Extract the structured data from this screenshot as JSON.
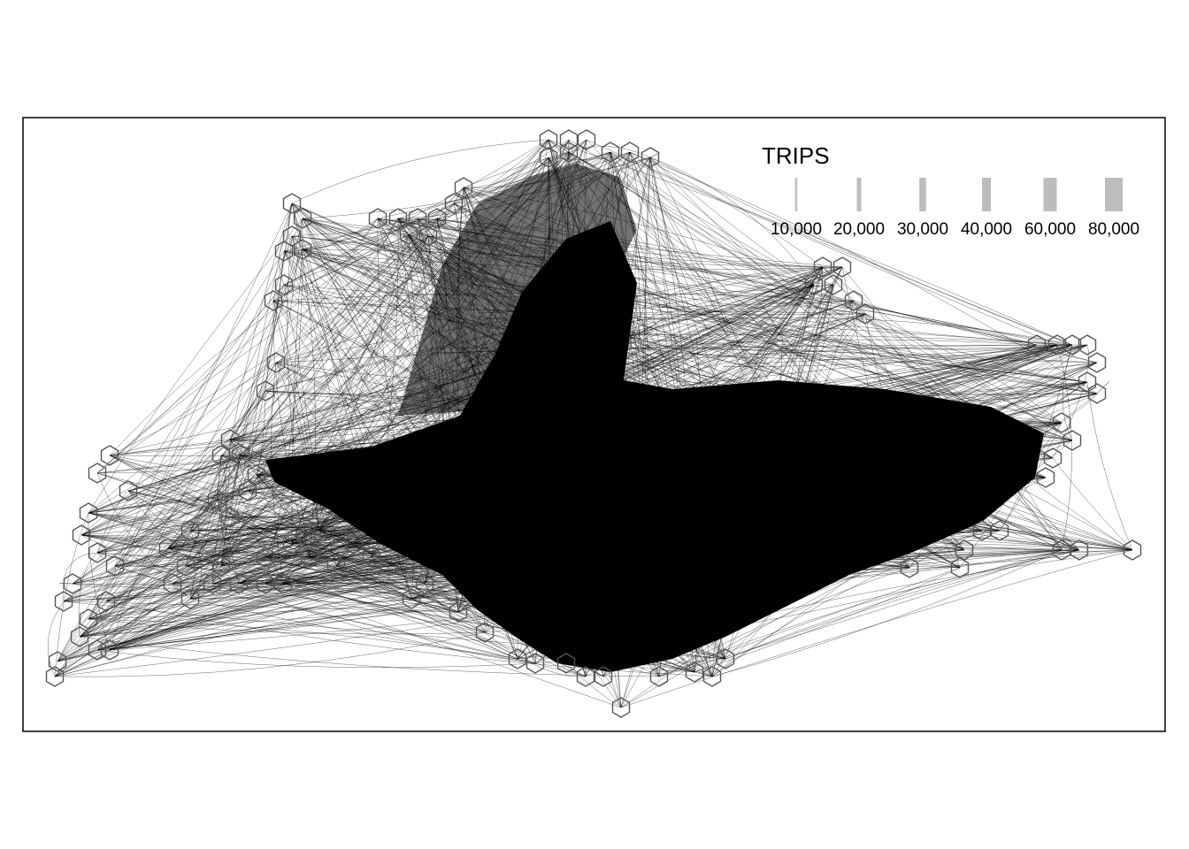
{
  "legend": {
    "title": "TRIPS",
    "items": [
      {
        "label": "10,000",
        "value": 10000,
        "color": "#bdbdbd"
      },
      {
        "label": "20,000",
        "value": 20000,
        "color": "#bdbdbd"
      },
      {
        "label": "30,000",
        "value": 30000,
        "color": "#bdbdbd"
      },
      {
        "label": "40,000",
        "value": 40000,
        "color": "#bdbdbd"
      },
      {
        "label": "60,000",
        "value": 60000,
        "color": "#bdbdbd"
      },
      {
        "label": "80,000",
        "value": 80000,
        "color": "#bdbdbd"
      }
    ]
  },
  "colors": {
    "flow": "#000000",
    "hexagon": "#555555",
    "frame": "#000000",
    "background": "#ffffff"
  }
}
